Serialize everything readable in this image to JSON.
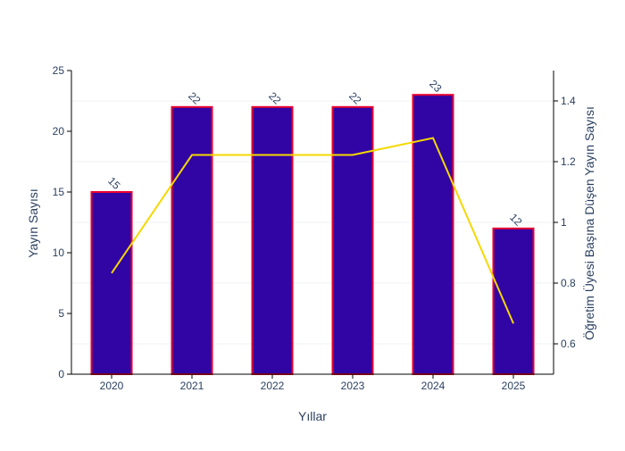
{
  "chart_data": {
    "type": "bar",
    "categories": [
      "2020",
      "2021",
      "2022",
      "2023",
      "2024",
      "2025"
    ],
    "xlabel": "Yıllar",
    "ylabel": "Yayın Sayısı",
    "y2label": "Öğretim Üyesi Başına Düşen Yayın Sayısı",
    "ylim": [
      0,
      25
    ],
    "y2lim": [
      0.5,
      1.5
    ],
    "yticks": [
      0,
      5,
      10,
      15,
      20,
      25
    ],
    "y2ticks": [
      0.6,
      0.8,
      1,
      1.2,
      1.4
    ],
    "grid": true,
    "series": [
      {
        "type": "bar",
        "values": [
          15,
          22,
          22,
          22,
          23,
          12
        ],
        "data_labels": [
          "15",
          "22",
          "22",
          "22",
          "23",
          "12"
        ],
        "color": "#3104a4",
        "edge_color": "#e8002f",
        "axis": "left"
      },
      {
        "type": "line",
        "values": [
          0.833,
          1.222,
          1.222,
          1.222,
          1.278,
          0.667
        ],
        "color": "#f5d800",
        "axis": "right"
      }
    ]
  }
}
